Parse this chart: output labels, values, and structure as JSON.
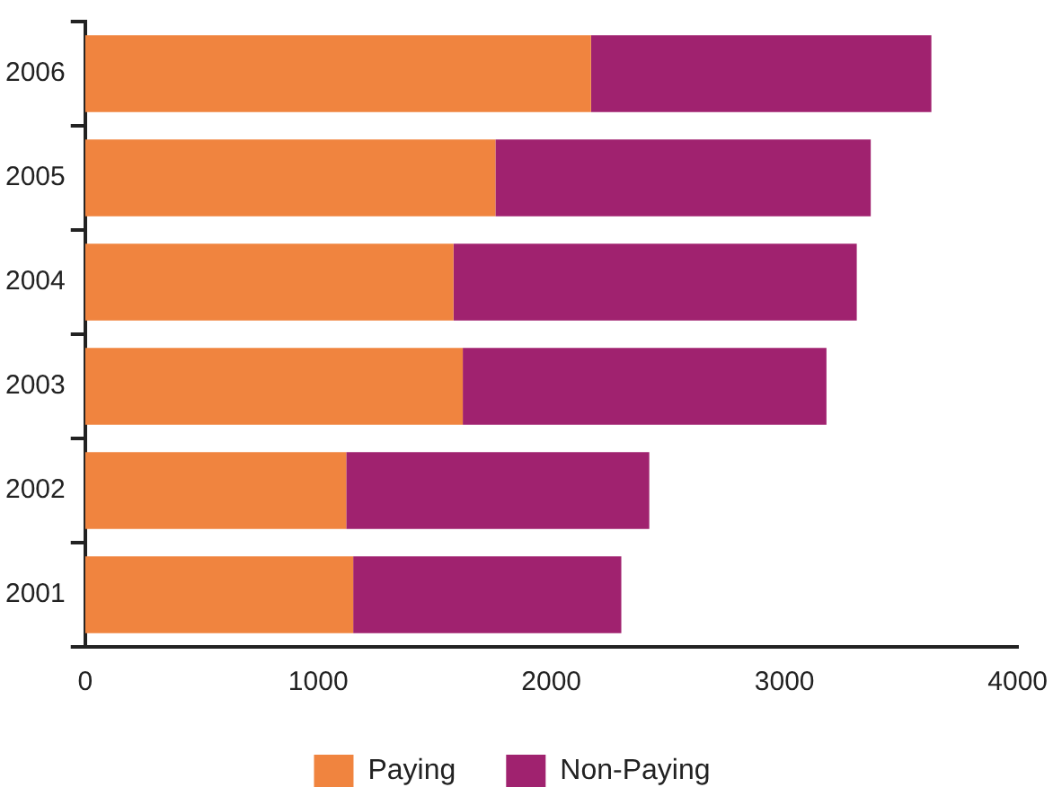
{
  "chart_data": {
    "type": "bar",
    "orientation": "horizontal",
    "stacked": true,
    "categories": [
      "2006",
      "2005",
      "2004",
      "2003",
      "2002",
      "2001"
    ],
    "series": [
      {
        "name": "Paying",
        "color": "#f0843f",
        "values": [
          2170,
          1760,
          1580,
          1620,
          1120,
          1150
        ]
      },
      {
        "name": "Non-Paying",
        "color": "#a0226f",
        "values": [
          1460,
          1610,
          1730,
          1560,
          1300,
          1150
        ]
      }
    ],
    "xlim": [
      0,
      4000
    ],
    "xticks": [
      0,
      1000,
      2000,
      3000,
      4000
    ],
    "grid": false,
    "legend": "bottom"
  }
}
